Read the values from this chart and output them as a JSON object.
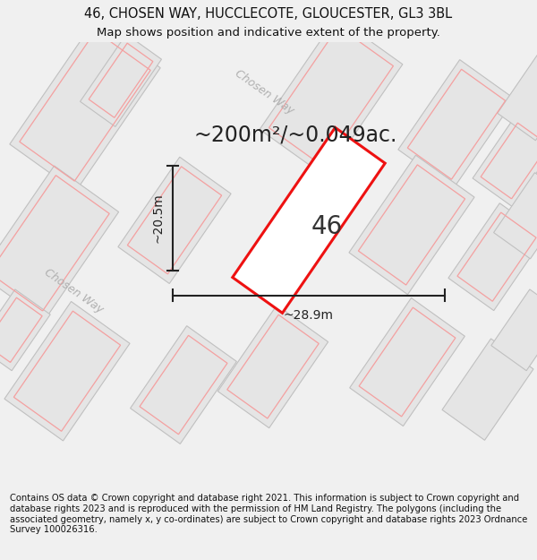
{
  "title_line1": "46, CHOSEN WAY, HUCCLECOTE, GLOUCESTER, GL3 3BL",
  "title_line2": "Map shows position and indicative extent of the property.",
  "footer_text": "Contains OS data © Crown copyright and database right 2021. This information is subject to Crown copyright and database rights 2023 and is reproduced with the permission of HM Land Registry. The polygons (including the associated geometry, namely x, y co-ordinates) are subject to Crown copyright and database rights 2023 Ordnance Survey 100026316.",
  "area_label": "~200m²/~0.049ac.",
  "number_label": "46",
  "width_label": "~28.9m",
  "height_label": "~20.5m",
  "road_label_upper": "Chosen Way",
  "road_label_lower": "Chosen Way",
  "title_fontsize": 10.5,
  "subtitle_fontsize": 9.5,
  "footer_fontsize": 7.2,
  "area_fontsize": 17,
  "number_fontsize": 20,
  "dim_fontsize": 10,
  "road_fontsize": 9
}
